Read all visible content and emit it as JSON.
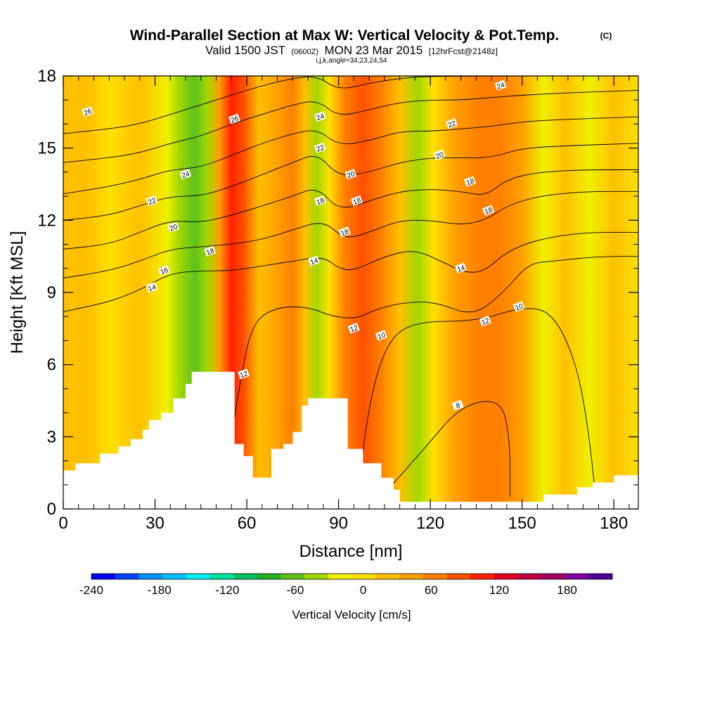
{
  "header": {
    "title": "Wind-Parallel Section at Max W: Vertical Velocity & Pot.Temp.",
    "title_mark": "(C)",
    "valid_prefix": "Valid 1500 JST",
    "valid_utc": "(0600Z)",
    "valid_date": "MON 23 Mar 2015",
    "forecast": "[12hrFcst@2148z]",
    "indices": "i,j,k,angle=34,23,24,54"
  },
  "chart_data": {
    "type": "heatmap",
    "xlabel": "Distance [nm]",
    "ylabel": "Height [Kft MSL]",
    "xlim": [
      0,
      188
    ],
    "ylim": [
      0,
      18
    ],
    "x_ticks": [
      0,
      30,
      60,
      90,
      120,
      150,
      180
    ],
    "y_ticks": [
      0,
      3,
      6,
      9,
      12,
      15,
      18
    ],
    "grid": false,
    "filled_field": {
      "name": "Vertical Velocity",
      "units": "cm/s",
      "approximate_columns": [
        {
          "x": 0,
          "w": 10
        },
        {
          "x": 8,
          "w": 5
        },
        {
          "x": 15,
          "w": -15
        },
        {
          "x": 25,
          "w": 5
        },
        {
          "x": 34,
          "w": -40
        },
        {
          "x": 38,
          "w": -60
        },
        {
          "x": 43,
          "w": -70
        },
        {
          "x": 47,
          "w": -50
        },
        {
          "x": 51,
          "w": 30
        },
        {
          "x": 55,
          "w": 95
        },
        {
          "x": 59,
          "w": 60
        },
        {
          "x": 64,
          "w": 15
        },
        {
          "x": 70,
          "w": 30
        },
        {
          "x": 75,
          "w": 50
        },
        {
          "x": 79,
          "w": 5
        },
        {
          "x": 83,
          "w": -60
        },
        {
          "x": 87,
          "w": -15
        },
        {
          "x": 92,
          "w": 50
        },
        {
          "x": 98,
          "w": 70
        },
        {
          "x": 104,
          "w": 45
        },
        {
          "x": 110,
          "w": 10
        },
        {
          "x": 116,
          "w": -45
        },
        {
          "x": 121,
          "w": -20
        },
        {
          "x": 128,
          "w": 20
        },
        {
          "x": 136,
          "w": 40
        },
        {
          "x": 143,
          "w": 55
        },
        {
          "x": 150,
          "w": 20
        },
        {
          "x": 157,
          "w": -25
        },
        {
          "x": 164,
          "w": 15
        },
        {
          "x": 172,
          "w": -30
        },
        {
          "x": 180,
          "w": 5
        },
        {
          "x": 188,
          "w": -10
        }
      ]
    },
    "contour_field": {
      "name": "Potential Temperature",
      "labels": [
        "26",
        "26",
        "24",
        "22",
        "20",
        "18",
        "16",
        "14",
        "12",
        "24",
        "22",
        "18",
        "14",
        "18",
        "20",
        "18",
        "12",
        "10",
        "24",
        "22",
        "20",
        "18",
        "18",
        "14",
        "10",
        "12",
        "8"
      ],
      "lines": [
        {
          "level": 8,
          "pts": [
            [
              104,
              0.5
            ],
            [
              118,
              2.5
            ],
            [
              130,
              4.3
            ],
            [
              143,
              4.6
            ],
            [
              146,
              3.0
            ],
            [
              146,
              0.5
            ]
          ]
        },
        {
          "level": 10,
          "pts": [
            [
              96,
              0.3
            ],
            [
              100,
              4.5
            ],
            [
              106,
              7.0
            ],
            [
              115,
              7.8
            ],
            [
              135,
              7.8
            ],
            [
              150,
              8.4
            ],
            [
              160,
              8.2
            ],
            [
              168,
              6.0
            ],
            [
              172,
              3.0
            ],
            [
              174,
              0.5
            ]
          ]
        },
        {
          "level": 12,
          "pts": [
            [
              52,
              0.5
            ],
            [
              58,
              5.5
            ],
            [
              62,
              7.8
            ],
            [
              70,
              8.4
            ],
            [
              80,
              8.4
            ],
            [
              88,
              8.0
            ],
            [
              96,
              7.9
            ],
            [
              102,
              8.3
            ],
            [
              112,
              8.6
            ],
            [
              122,
              8.6
            ],
            [
              134,
              8.0
            ],
            [
              144,
              9.0
            ],
            [
              152,
              10.2
            ],
            [
              160,
              10.3
            ],
            [
              175,
              10.5
            ],
            [
              188,
              10.5
            ]
          ]
        },
        {
          "level": 14,
          "pts": [
            [
              0,
              8.2
            ],
            [
              15,
              8.6
            ],
            [
              25,
              9.1
            ],
            [
              35,
              9.8
            ],
            [
              45,
              9.9
            ],
            [
              55,
              9.9
            ],
            [
              65,
              10.1
            ],
            [
              75,
              10.3
            ],
            [
              85,
              10.5
            ],
            [
              90,
              10.0
            ],
            [
              95,
              9.9
            ],
            [
              105,
              10.5
            ],
            [
              115,
              10.8
            ],
            [
              125,
              10.2
            ],
            [
              132,
              9.8
            ],
            [
              138,
              9.9
            ],
            [
              145,
              10.7
            ],
            [
              155,
              11.2
            ],
            [
              170,
              11.5
            ],
            [
              188,
              11.5
            ]
          ]
        },
        {
          "level": 16,
          "pts": [
            [
              0,
              9.6
            ],
            [
              15,
              9.9
            ],
            [
              25,
              10.3
            ],
            [
              35,
              10.8
            ],
            [
              45,
              10.9
            ],
            [
              55,
              11.0
            ],
            [
              65,
              11.2
            ],
            [
              75,
              11.6
            ],
            [
              85,
              12.0
            ],
            [
              92,
              11.2
            ],
            [
              100,
              11.5
            ],
            [
              110,
              12.0
            ],
            [
              120,
              12.0
            ],
            [
              130,
              11.8
            ],
            [
              138,
              12.0
            ],
            [
              145,
              12.6
            ],
            [
              155,
              13.0
            ],
            [
              170,
              13.2
            ],
            [
              188,
              13.2
            ]
          ]
        },
        {
          "level": 18,
          "pts": [
            [
              0,
              10.8
            ],
            [
              15,
              11.0
            ],
            [
              25,
              11.5
            ],
            [
              35,
              12.0
            ],
            [
              45,
              11.9
            ],
            [
              55,
              12.2
            ],
            [
              65,
              12.6
            ],
            [
              75,
              13.0
            ],
            [
              83,
              13.4
            ],
            [
              90,
              12.4
            ],
            [
              100,
              12.8
            ],
            [
              110,
              13.2
            ],
            [
              120,
              13.3
            ],
            [
              130,
              13.2
            ],
            [
              138,
              13.0
            ],
            [
              145,
              13.7
            ],
            [
              155,
              14.0
            ],
            [
              170,
              14.1
            ],
            [
              188,
              14.1
            ]
          ]
        },
        {
          "level": 20,
          "pts": [
            [
              0,
              12.0
            ],
            [
              15,
              12.2
            ],
            [
              25,
              12.6
            ],
            [
              35,
              13.0
            ],
            [
              45,
              13.0
            ],
            [
              55,
              13.4
            ],
            [
              65,
              13.9
            ],
            [
              75,
              14.4
            ],
            [
              83,
              14.8
            ],
            [
              90,
              13.8
            ],
            [
              100,
              14.0
            ],
            [
              110,
              14.4
            ],
            [
              120,
              14.6
            ],
            [
              130,
              14.6
            ],
            [
              140,
              14.6
            ],
            [
              150,
              15.0
            ],
            [
              165,
              15.1
            ],
            [
              188,
              15.2
            ]
          ]
        },
        {
          "level": 22,
          "pts": [
            [
              0,
              13.1
            ],
            [
              15,
              13.4
            ],
            [
              25,
              13.7
            ],
            [
              35,
              14.1
            ],
            [
              45,
              14.2
            ],
            [
              55,
              14.7
            ],
            [
              65,
              15.2
            ],
            [
              75,
              15.6
            ],
            [
              83,
              15.8
            ],
            [
              90,
              15.1
            ],
            [
              100,
              15.3
            ],
            [
              110,
              15.7
            ],
            [
              120,
              15.7
            ],
            [
              130,
              15.8
            ],
            [
              140,
              15.9
            ],
            [
              150,
              16.1
            ],
            [
              165,
              16.2
            ],
            [
              188,
              16.3
            ]
          ]
        },
        {
          "level": 24,
          "pts": [
            [
              0,
              14.4
            ],
            [
              15,
              14.6
            ],
            [
              25,
              14.8
            ],
            [
              35,
              15.2
            ],
            [
              45,
              15.5
            ],
            [
              55,
              16.0
            ],
            [
              65,
              16.4
            ],
            [
              75,
              16.8
            ],
            [
              83,
              17.0
            ],
            [
              90,
              16.3
            ],
            [
              100,
              16.6
            ],
            [
              110,
              16.9
            ],
            [
              120,
              17.0
            ],
            [
              130,
              17.0
            ],
            [
              140,
              17.1
            ],
            [
              150,
              17.2
            ],
            [
              165,
              17.3
            ],
            [
              188,
              17.4
            ]
          ]
        },
        {
          "level": 26,
          "pts": [
            [
              0,
              15.6
            ],
            [
              15,
              15.8
            ],
            [
              25,
              16.0
            ],
            [
              35,
              16.4
            ],
            [
              45,
              16.8
            ],
            [
              55,
              17.2
            ],
            [
              65,
              17.6
            ],
            [
              75,
              17.9
            ],
            [
              83,
              18.0
            ],
            [
              90,
              17.4
            ],
            [
              100,
              17.7
            ],
            [
              110,
              17.9
            ],
            [
              120,
              18.0
            ],
            [
              188,
              18.0
            ]
          ]
        }
      ]
    },
    "terrain": [
      [
        0,
        1.6
      ],
      [
        4,
        1.9
      ],
      [
        10,
        1.9
      ],
      [
        12,
        2.3
      ],
      [
        18,
        2.6
      ],
      [
        22,
        2.9
      ],
      [
        26,
        3.3
      ],
      [
        28,
        3.7
      ],
      [
        32,
        4.0
      ],
      [
        36,
        4.6
      ],
      [
        40,
        5.2
      ],
      [
        42,
        5.7
      ],
      [
        51,
        5.7
      ],
      [
        56,
        2.7
      ],
      [
        59,
        2.2
      ],
      [
        62,
        1.3
      ],
      [
        65,
        1.3
      ],
      [
        68,
        2.5
      ],
      [
        72,
        2.7
      ],
      [
        75,
        3.2
      ],
      [
        78,
        4.3
      ],
      [
        80,
        4.6
      ],
      [
        87,
        4.6
      ],
      [
        93,
        2.5
      ],
      [
        98,
        1.9
      ],
      [
        104,
        1.3
      ],
      [
        108,
        0.8
      ],
      [
        110,
        0.3
      ],
      [
        155,
        0.3
      ],
      [
        157,
        0.6
      ],
      [
        168,
        0.9
      ],
      [
        173,
        1.1
      ],
      [
        180,
        1.4
      ],
      [
        188,
        1.4
      ]
    ]
  },
  "colorbar": {
    "label": "Vertical Velocity [cm/s]",
    "min": -240,
    "max": 220,
    "step": 20,
    "tick_labels": [
      "-240",
      "-180",
      "-120",
      "-60",
      "0",
      "60",
      "120",
      "180"
    ],
    "colors": [
      "#0000f0",
      "#0040ff",
      "#0090ff",
      "#00c0ff",
      "#00f0f0",
      "#00e0a0",
      "#00c060",
      "#20b020",
      "#60c020",
      "#a0d800",
      "#f0f000",
      "#ffe000",
      "#ffc000",
      "#ffa000",
      "#ff8000",
      "#ff5000",
      "#ff2000",
      "#e00020",
      "#c00040",
      "#a00060",
      "#8000a0",
      "#500090"
    ]
  }
}
